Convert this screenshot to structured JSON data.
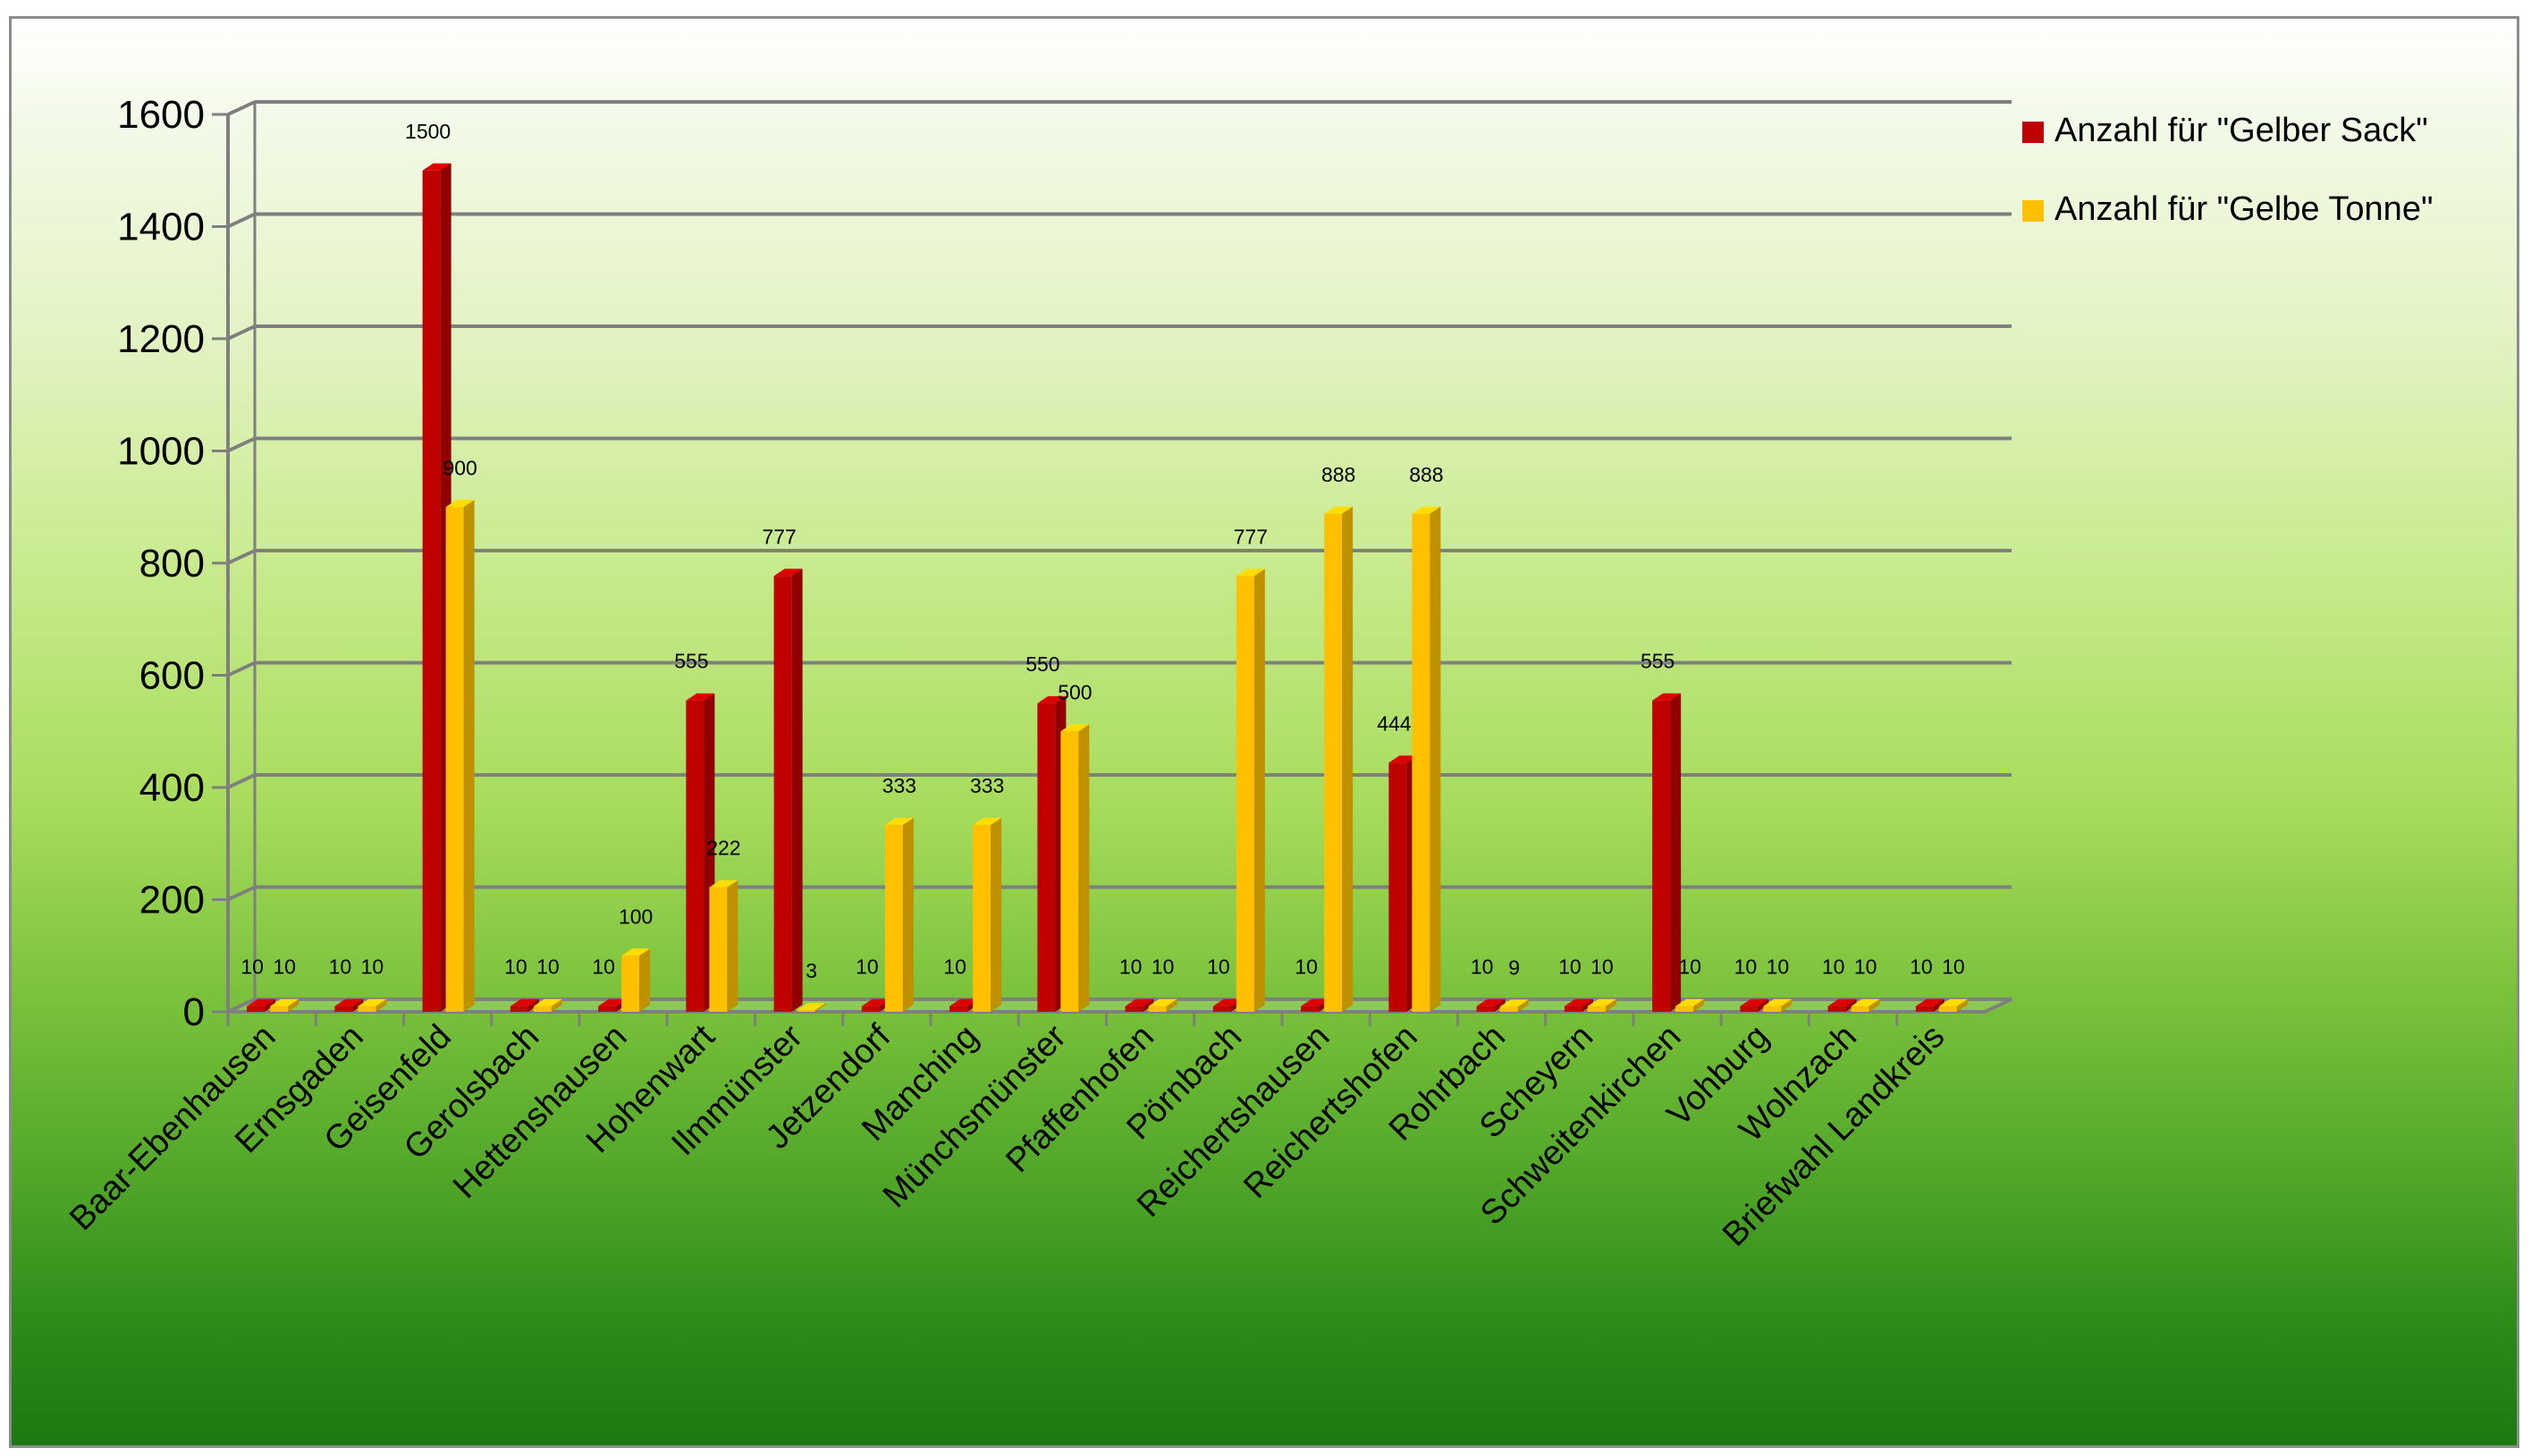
{
  "chart_data": {
    "type": "bar",
    "title": "",
    "xlabel": "",
    "ylabel": "",
    "ylim": [
      0,
      1600
    ],
    "yticks": [
      0,
      200,
      400,
      600,
      800,
      1000,
      1200,
      1400,
      1600
    ],
    "grid": true,
    "legend_position": "top-right",
    "categories": [
      "Baar-Ebenhausen",
      "Ernsgaden",
      "Geisenfeld",
      "Gerolsbach",
      "Hettenshausen",
      "Hohenwart",
      "Ilmmünster",
      "Jetzendorf",
      "Manching",
      "Münchsmünster",
      "Pfaffenhofen",
      "Pörnbach",
      "Reichertshausen",
      "Reichertshofen",
      "Rohrbach",
      "Scheyern",
      "Schweitenkirchen",
      "Vohburg",
      "Wolnzach",
      "Briefwahl Landkreis"
    ],
    "series": [
      {
        "name": "Anzahl für \"Gelber Sack\"",
        "color": "#c00000",
        "values": [
          10,
          10,
          1500,
          10,
          10,
          555,
          777,
          10,
          10,
          550,
          10,
          10,
          10,
          444,
          10,
          10,
          555,
          10,
          10,
          10
        ],
        "labels": [
          "10",
          "10",
          "1500",
          "10",
          "10",
          "555",
          "777",
          "10",
          "10",
          "550",
          "10",
          "10",
          "10",
          "444",
          "10",
          "10",
          "555",
          "10",
          "10",
          "10"
        ]
      },
      {
        "name": "Anzahl für \"Gelbe Tonne\"",
        "color": "#ffc000",
        "values": [
          10,
          10,
          900,
          10,
          100,
          222,
          3,
          333,
          333,
          500,
          10,
          777,
          888,
          888,
          9,
          10,
          10,
          10,
          10,
          10
        ],
        "labels": [
          "10",
          "10",
          "900",
          "10",
          "100",
          "222",
          "3",
          "333",
          "333",
          "500",
          "10",
          "777",
          "888",
          "888",
          "9",
          "10",
          "10",
          "10",
          "10",
          "10"
        ]
      }
    ]
  }
}
